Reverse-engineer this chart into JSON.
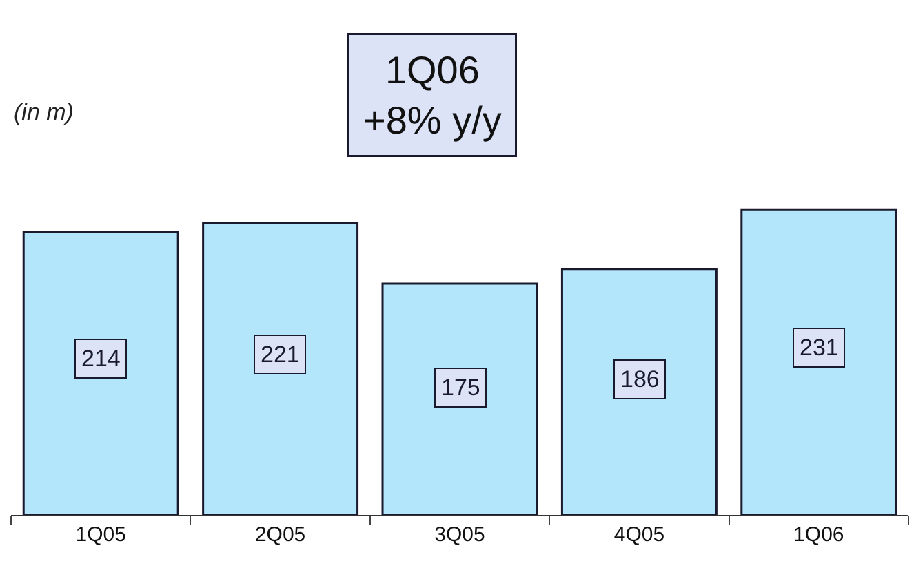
{
  "chart_data": {
    "type": "bar",
    "title": "1Q06\n+8% y/y",
    "annotations": [
      "(in m)"
    ],
    "categories": [
      "1Q05",
      "2Q05",
      "3Q05",
      "4Q05",
      "1Q06"
    ],
    "values": [
      214,
      221,
      175,
      186,
      231
    ],
    "color": "#b3e6fb",
    "data_labels": true,
    "legend": false
  }
}
